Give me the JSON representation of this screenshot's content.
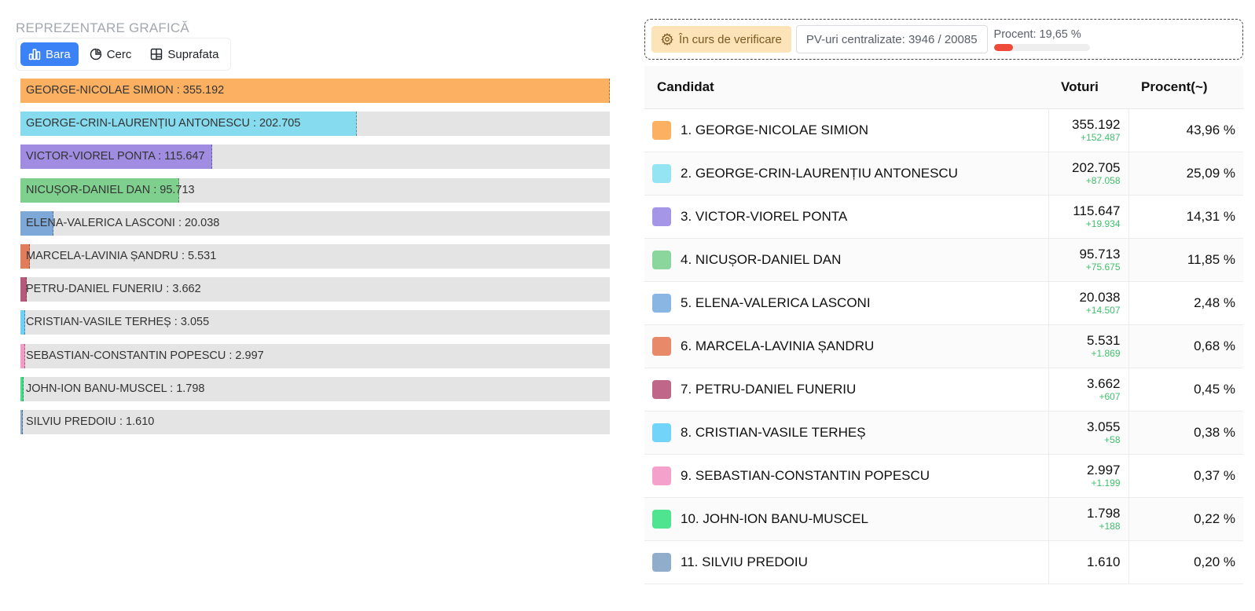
{
  "left": {
    "title": "REPREZENTARE GRAFICĂ",
    "tabs": [
      {
        "label": "Bara",
        "icon": "bar-chart-icon",
        "active": true
      },
      {
        "label": "Cerc",
        "icon": "pie-chart-icon",
        "active": false
      },
      {
        "label": "Suprafata",
        "icon": "grid-icon",
        "active": false
      }
    ]
  },
  "chart_data": {
    "type": "bar",
    "orientation": "horizontal",
    "categories": [
      "GEORGE-NICOLAE SIMION",
      "GEORGE-CRIN-LAURENȚIU ANTONESCU",
      "VICTOR-VIOREL PONTA",
      "NICUȘOR-DANIEL DAN",
      "ELENA-VALERICA LASCONI",
      "MARCELA-LAVINIA ȘANDRU",
      "PETRU-DANIEL FUNERIU",
      "CRISTIAN-VASILE TERHEȘ",
      "SEBASTIAN-CONSTANTIN POPESCU",
      "JOHN-ION BANU-MUSCEL",
      "SILVIU PREDOIU"
    ],
    "values": [
      355192,
      202705,
      115647,
      95713,
      20038,
      5531,
      3662,
      3055,
      2997,
      1798,
      1610
    ],
    "labels": [
      "GEORGE-NICOLAE SIMION : 355.192",
      "GEORGE-CRIN-LAURENȚIU ANTONESCU : 202.705",
      "VICTOR-VIOREL PONTA : 115.647",
      "NICUȘOR-DANIEL DAN : 95.713",
      "ELENA-VALERICA LASCONI : 20.038",
      "MARCELA-LAVINIA ȘANDRU : 5.531",
      "PETRU-DANIEL FUNERIU : 3.662",
      "CRISTIAN-VASILE TERHEȘ : 3.055",
      "SEBASTIAN-CONSTANTIN POPESCU : 2.997",
      "JOHN-ION BANU-MUSCEL : 1.798",
      "SILVIU PREDOIU : 1.610"
    ],
    "colors": [
      "#fbb062",
      "#86dcee",
      "#a08ce0",
      "#7fd08e",
      "#7ea8d8",
      "#e07e5c",
      "#b55a7a",
      "#6fd0f5",
      "#f09cc4",
      "#46dc8a",
      "#8aa8c8"
    ],
    "xlim": [
      0,
      355192
    ]
  },
  "status": {
    "verify_label": "În curs de verificare",
    "pv_label": "PV-uri centralizate: 3946 / 20085",
    "progress_label": "Procent: 19,65 %",
    "progress_value": 19.65
  },
  "table": {
    "headers": {
      "name": "Candidat",
      "votes": "Voturi",
      "pct": "Procent(~)"
    },
    "rows": [
      {
        "name": "1. GEORGE-NICOLAE SIMION",
        "votes": "355.192",
        "delta": "+152.487",
        "pct": "43,96 %",
        "color": "#fbb062"
      },
      {
        "name": "2. GEORGE-CRIN-LAURENȚIU ANTONESCU",
        "votes": "202.705",
        "delta": "+87.058",
        "pct": "25,09 %",
        "color": "#94e4f3"
      },
      {
        "name": "3. VICTOR-VIOREL PONTA",
        "votes": "115.647",
        "delta": "+19.934",
        "pct": "14,31 %",
        "color": "#a596e8"
      },
      {
        "name": "4. NICUȘOR-DANIEL DAN",
        "votes": "95.713",
        "delta": "+75.675",
        "pct": "11,85 %",
        "color": "#8bd69c"
      },
      {
        "name": "5. ELENA-VALERICA LASCONI",
        "votes": "20.038",
        "delta": "+14.507",
        "pct": "2,48 %",
        "color": "#8ab6e4"
      },
      {
        "name": "6. MARCELA-LAVINIA ȘANDRU",
        "votes": "5.531",
        "delta": "+1.869",
        "pct": "0,68 %",
        "color": "#e88a6a"
      },
      {
        "name": "7. PETRU-DANIEL FUNERIU",
        "votes": "3.662",
        "delta": "+607",
        "pct": "0,45 %",
        "color": "#c06688"
      },
      {
        "name": "8. CRISTIAN-VASILE TERHEȘ",
        "votes": "3.055",
        "delta": "+58",
        "pct": "0,38 %",
        "color": "#72d4f8"
      },
      {
        "name": "9. SEBASTIAN-CONSTANTIN POPESCU",
        "votes": "2.997",
        "delta": "+1.199",
        "pct": "0,37 %",
        "color": "#f4a2cc"
      },
      {
        "name": "10. JOHN-ION BANU-MUSCEL",
        "votes": "1.798",
        "delta": "+188",
        "pct": "0,22 %",
        "color": "#4fe490"
      },
      {
        "name": "11. SILVIU PREDOIU",
        "votes": "1.610",
        "delta": "",
        "pct": "0,20 %",
        "color": "#90aecc"
      }
    ]
  }
}
